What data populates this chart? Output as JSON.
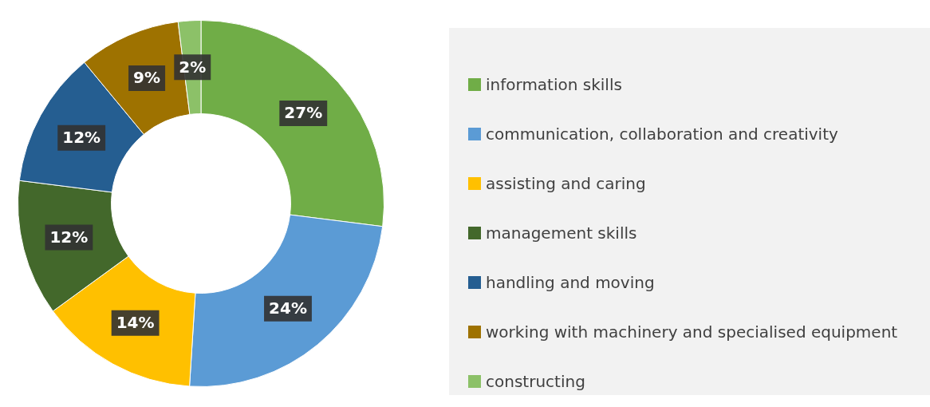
{
  "chart_data": {
    "type": "donut",
    "categories": [
      "information skills",
      "communication, collaboration and creativity",
      "assisting and caring",
      "management skills",
      "handling and moving",
      "working with machinery and specialised equipment",
      "constructing"
    ],
    "values": [
      27,
      24,
      14,
      12,
      12,
      9,
      2
    ],
    "colors": [
      "#70ad47",
      "#5b9bd5",
      "#ffc000",
      "#43682b",
      "#255e91",
      "#9e7200",
      "#8cc168"
    ],
    "value_labels": [
      "27%",
      "24%",
      "14%",
      "12%",
      "12%",
      "9%",
      "2%"
    ],
    "legend": "right"
  }
}
